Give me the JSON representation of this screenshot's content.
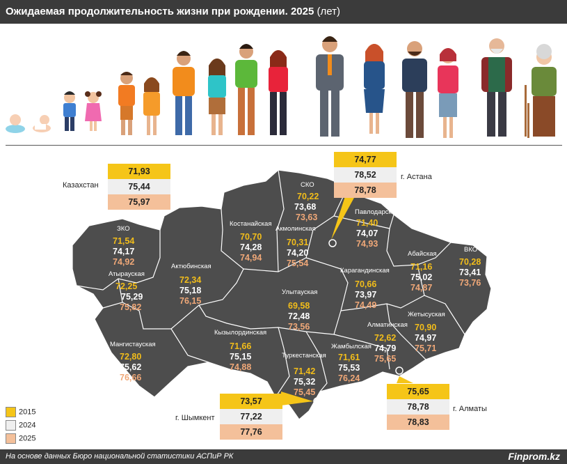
{
  "header": {
    "title": "Ожидаемая продолжительность жизни при рождении. 2025",
    "unit": "(лет)"
  },
  "national": {
    "label": "Казахстан",
    "v2015": "71,93",
    "v2024": "75,44",
    "v2025": "75,97"
  },
  "cities": {
    "astana": {
      "label": "г. Астана",
      "v2015": "74,77",
      "v2024": "78,52",
      "v2025": "78,78"
    },
    "almaty": {
      "label": "г. Алматы",
      "v2015": "75,65",
      "v2024": "78,78",
      "v2025": "78,83"
    },
    "shymkent": {
      "label": "г. Шымкент",
      "v2015": "73,57",
      "v2024": "77,22",
      "v2025": "77,76"
    }
  },
  "regions": [
    {
      "name": "СКО",
      "v2015": "70,22",
      "v2024": "73,68",
      "v2025": "73,63"
    },
    {
      "name": "Костанайская",
      "v2015": "70,70",
      "v2024": "74,28",
      "v2025": "74,94"
    },
    {
      "name": "Акмолинская",
      "v2015": "70,31",
      "v2024": "74,20",
      "v2025": "75,54"
    },
    {
      "name": "Павлодарская",
      "v2015": "71,40",
      "v2024": "74,07",
      "v2025": "74,93"
    },
    {
      "name": "ЗКО",
      "v2015": "71,54",
      "v2024": "74,17",
      "v2025": "74,92"
    },
    {
      "name": "Атырауская",
      "v2015": "72,25",
      "v2024": "75,29",
      "v2025": "75,82"
    },
    {
      "name": "Актюбинская",
      "v2015": "72,34",
      "v2024": "75,18",
      "v2025": "76,15"
    },
    {
      "name": "Абайская",
      "v2015": "71,16",
      "v2024": "75,02",
      "v2025": "74,87"
    },
    {
      "name": "ВКО",
      "v2015": "70,28",
      "v2024": "73,41",
      "v2025": "73,76"
    },
    {
      "name": "Карагандинская",
      "v2015": "70,66",
      "v2024": "73,97",
      "v2025": "74,49"
    },
    {
      "name": "Улытауская",
      "v2015": "69,58",
      "v2024": "72,48",
      "v2025": "73,56"
    },
    {
      "name": "Жетысуская",
      "v2015": "70,90",
      "v2024": "74,97",
      "v2025": "75,71"
    },
    {
      "name": "Алматинская",
      "v2015": "72,62",
      "v2024": "74,79",
      "v2025": "75,65"
    },
    {
      "name": "Мангистауская",
      "v2015": "72,80",
      "v2024": "75,62",
      "v2025": "76,66"
    },
    {
      "name": "Кызылординская",
      "v2015": "71,66",
      "v2024": "75,15",
      "v2025": "74,88"
    },
    {
      "name": "Туркестанская",
      "v2015": "71,42",
      "v2024": "75,32",
      "v2025": "75,45"
    },
    {
      "name": "Жамбылская",
      "v2015": "71,61",
      "v2024": "75,53",
      "v2025": "76,24"
    }
  ],
  "legend": [
    {
      "label": "2015",
      "color": "#f5c518"
    },
    {
      "label": "2024",
      "color": "#efefef"
    },
    {
      "label": "2025",
      "color": "#f4c09a"
    }
  ],
  "footer": {
    "source": "На основе данных Бюро национальной статистики АСПиР РК",
    "brand": "Finprom.kz"
  }
}
